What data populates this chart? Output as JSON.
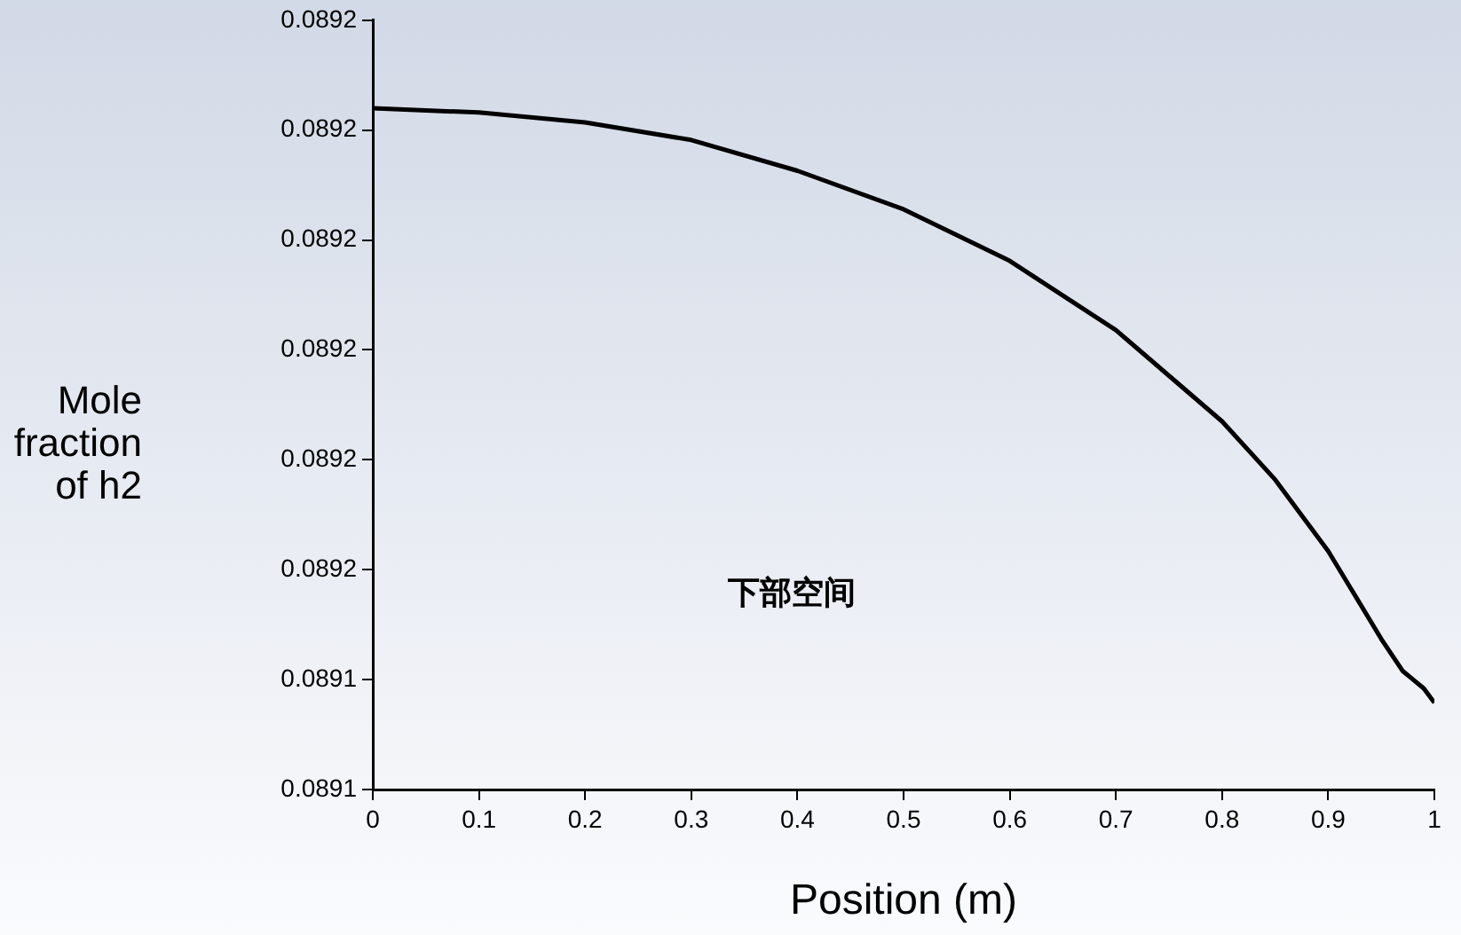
{
  "chart_data": {
    "type": "line",
    "xlabel": "Position (m)",
    "ylabel": "Mole fraction of h2",
    "annotations": [
      "下部空间"
    ],
    "x": [
      0,
      0.1,
      0.2,
      0.3,
      0.4,
      0.5,
      0.6,
      0.7,
      0.8,
      0.85,
      0.9,
      0.95,
      0.97,
      0.98,
      0.99,
      1.0
    ],
    "series": [
      {
        "color": "#000000",
        "values": [
          0.089197,
          0.0891966,
          0.0891957,
          0.0891941,
          0.0891913,
          0.0891878,
          0.0891831,
          0.0891768,
          0.0891685,
          0.0891632,
          0.0891567,
          0.0891487,
          0.0891458,
          0.089145,
          0.0891442,
          0.0891429
        ]
      }
    ],
    "xlim": [
      0,
      1
    ],
    "xticks": [
      0,
      0.1,
      0.2,
      0.3,
      0.4,
      0.5,
      0.6,
      0.7,
      0.8,
      0.9,
      1
    ],
    "ylim": [
      0.089135,
      0.089205
    ],
    "yticks": [
      {
        "value": 0.089135,
        "label": "0.0891"
      },
      {
        "value": 0.089145,
        "label": "0.0891"
      },
      {
        "value": 0.089155,
        "label": "0.0892"
      },
      {
        "value": 0.089165,
        "label": "0.0892"
      },
      {
        "value": 0.089175,
        "label": "0.0892"
      },
      {
        "value": 0.089185,
        "label": "0.0892"
      },
      {
        "value": 0.089195,
        "label": "0.0892"
      },
      {
        "value": 0.089205,
        "label": "0.0892"
      }
    ],
    "grid": false,
    "legend": false,
    "marker": "none",
    "line_style": "solid"
  }
}
